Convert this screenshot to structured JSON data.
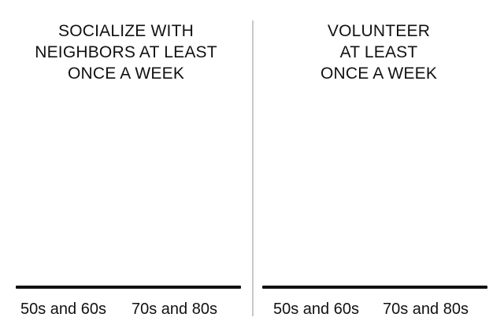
{
  "chart_data": [
    {
      "type": "bar",
      "title_lines": [
        "SOCIALIZE WITH",
        "NEIGHBORS AT LEAST",
        "ONCE A WEEK"
      ],
      "categories": [
        "50s and 60s",
        "70s and 80s"
      ]
    },
    {
      "type": "bar",
      "title_lines": [
        "VOLUNTEER",
        "AT LEAST",
        "ONCE A WEEK"
      ],
      "categories": [
        "50s and 60s",
        "70s and 80s"
      ]
    }
  ],
  "colors": {
    "text": "#111111",
    "baseline": "#111111",
    "divider": "#c8c8c8",
    "background": "#ffffff"
  }
}
